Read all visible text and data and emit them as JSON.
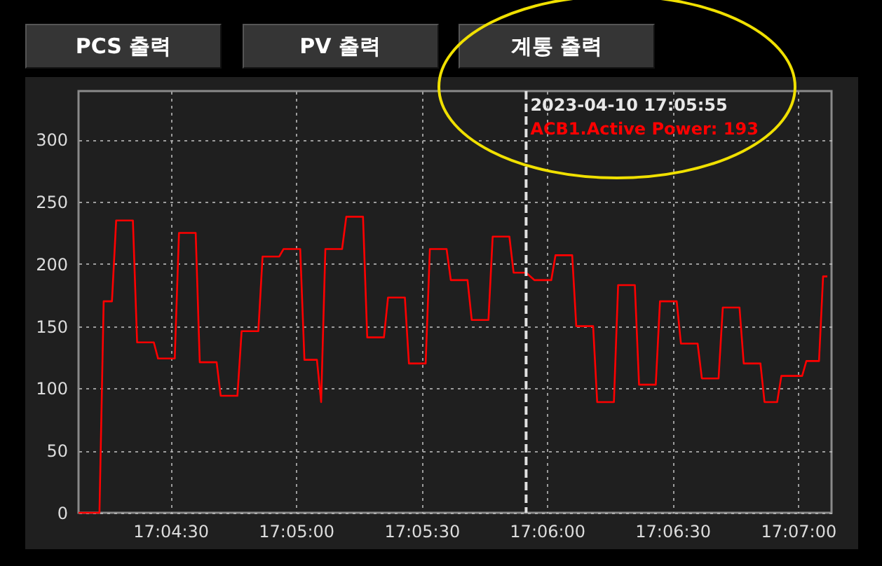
{
  "chart_data": {
    "type": "line",
    "annotations": [
      "PCS 출력",
      "PV 출력",
      "계통 출력",
      "ACB1.Active Power: 193"
    ],
    "x": [
      17.06889,
      17.07028,
      17.07056,
      17.07111,
      17.07139,
      17.0725,
      17.07278,
      17.07389,
      17.07417,
      17.07528,
      17.07556,
      17.07667,
      17.07694,
      17.07806,
      17.07833,
      17.07944,
      17.07972,
      17.08083,
      17.08111,
      17.08222,
      17.0825,
      17.08361,
      17.08389,
      17.08472,
      17.085,
      17.08528,
      17.08639,
      17.08667,
      17.08778,
      17.08806,
      17.08917,
      17.08944,
      17.09056,
      17.09083,
      17.09194,
      17.09222,
      17.09333,
      17.09361,
      17.09472,
      17.095,
      17.09611,
      17.09639,
      17.0975,
      17.09778,
      17.09861,
      17.09917,
      17.10028,
      17.10056,
      17.10167,
      17.10194,
      17.10306,
      17.10333,
      17.10444,
      17.10472,
      17.10583,
      17.10611,
      17.10722,
      17.1075,
      17.10861,
      17.10889,
      17.11,
      17.11028,
      17.11139,
      17.11167,
      17.11278,
      17.11306,
      17.11417,
      17.11444,
      17.11528,
      17.11556,
      17.11694,
      17.11722,
      17.11806,
      17.11833,
      17.11861
    ],
    "series": [
      {
        "color": "#ff0000",
        "values": [
          0,
          0,
          170,
          170,
          235,
          235,
          137,
          137,
          124,
          124,
          225,
          225,
          121,
          121,
          94,
          94,
          146,
          146,
          206,
          206,
          212,
          212,
          123,
          123,
          89,
          212,
          212,
          238,
          238,
          141,
          141,
          173,
          173,
          120,
          120,
          212,
          212,
          187,
          187,
          155,
          155,
          222,
          222,
          193,
          193,
          187,
          187,
          207,
          207,
          150,
          150,
          89,
          89,
          183,
          183,
          103,
          103,
          170,
          170,
          136,
          136,
          108,
          108,
          165,
          165,
          120,
          120,
          89,
          89,
          110,
          110,
          122,
          122,
          190,
          190
        ]
      }
    ],
    "xlim": [
      17.06889,
      17.11889
    ],
    "xticks": [
      {
        "value": 17.075,
        "label": "17:04:30"
      },
      {
        "value": 17.08333,
        "label": "17:05:00"
      },
      {
        "value": 17.09167,
        "label": "17:05:30"
      },
      {
        "value": 17.1,
        "label": "17:06:00"
      },
      {
        "value": 17.10833,
        "label": "17:06:30"
      },
      {
        "value": 17.11667,
        "label": "17:07:00"
      }
    ],
    "ylim": [
      0,
      339
    ],
    "yticks": [
      0,
      50,
      100,
      150,
      200,
      250,
      300
    ],
    "grid": true,
    "marker": "none",
    "line_style": "solid",
    "ref_lines": [
      {
        "axis": "x",
        "value": 17.09861,
        "label": "2023-04-10 17:05:55",
        "color": "#e0e0e0",
        "line_style": "dashed"
      }
    ]
  }
}
